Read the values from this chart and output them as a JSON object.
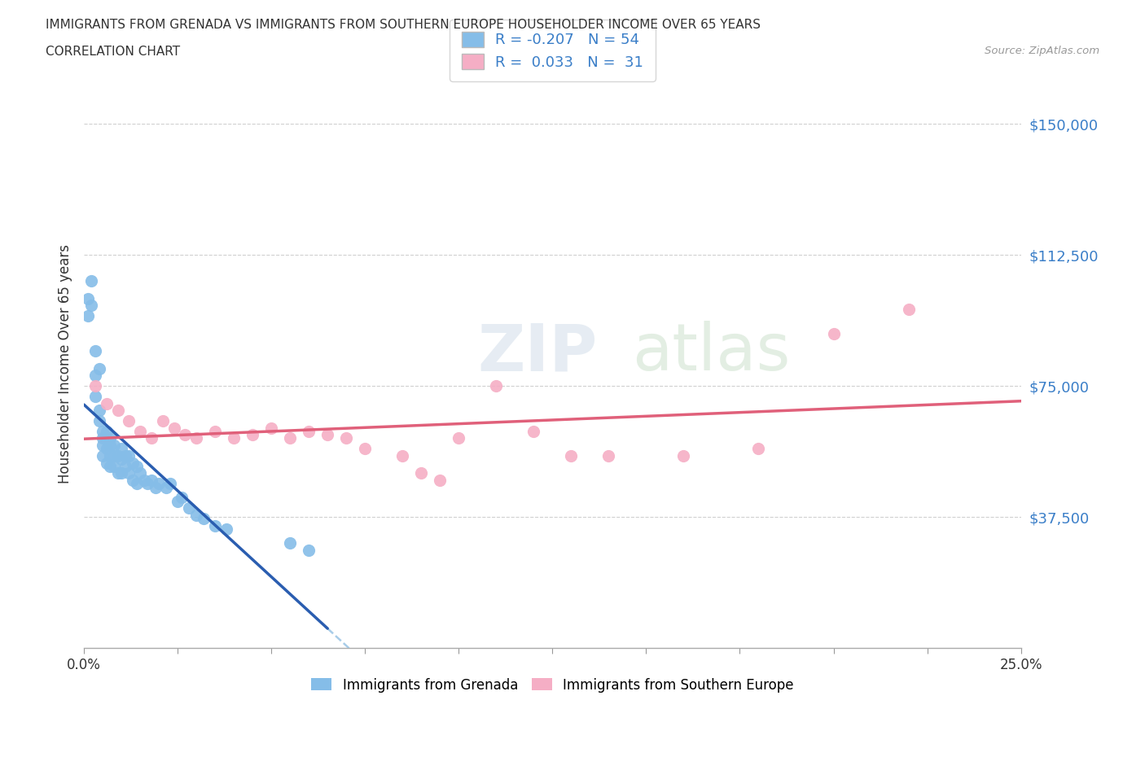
{
  "title_line1": "IMMIGRANTS FROM GRENADA VS IMMIGRANTS FROM SOUTHERN EUROPE HOUSEHOLDER INCOME OVER 65 YEARS",
  "title_line2": "CORRELATION CHART",
  "source_text": "Source: ZipAtlas.com",
  "ylabel": "Householder Income Over 65 years",
  "xlim": [
    0.0,
    0.25
  ],
  "ylim": [
    0,
    162500
  ],
  "ytick_labels": [
    "$37,500",
    "$75,000",
    "$112,500",
    "$150,000"
  ],
  "ytick_values": [
    37500,
    75000,
    112500,
    150000
  ],
  "grenada_color": "#85bde8",
  "s_europe_color": "#f5aec5",
  "grenada_line_color": "#2a5db0",
  "s_europe_line_color": "#e0607a",
  "dashed_line_color": "#a8cce8",
  "R_grenada": -0.207,
  "N_grenada": 54,
  "R_s_europe": 0.033,
  "N_s_europe": 31,
  "legend_label_1": "Immigrants from Grenada",
  "legend_label_2": "Immigrants from Southern Europe",
  "watermark_zip": "ZIP",
  "watermark_atlas": "atlas",
  "grenada_x": [
    0.001,
    0.001,
    0.002,
    0.002,
    0.003,
    0.003,
    0.003,
    0.004,
    0.004,
    0.004,
    0.005,
    0.005,
    0.005,
    0.005,
    0.006,
    0.006,
    0.006,
    0.007,
    0.007,
    0.007,
    0.007,
    0.008,
    0.008,
    0.008,
    0.009,
    0.009,
    0.01,
    0.01,
    0.01,
    0.011,
    0.011,
    0.012,
    0.012,
    0.013,
    0.013,
    0.014,
    0.014,
    0.015,
    0.016,
    0.017,
    0.018,
    0.019,
    0.02,
    0.022,
    0.023,
    0.025,
    0.026,
    0.028,
    0.03,
    0.032,
    0.035,
    0.038,
    0.055,
    0.06
  ],
  "grenada_y": [
    100000,
    95000,
    105000,
    98000,
    85000,
    78000,
    72000,
    80000,
    68000,
    65000,
    62000,
    60000,
    58000,
    55000,
    62000,
    57000,
    53000,
    60000,
    58000,
    55000,
    52000,
    58000,
    55000,
    52000,
    55000,
    50000,
    57000,
    54000,
    50000,
    55000,
    52000,
    55000,
    50000,
    53000,
    48000,
    52000,
    47000,
    50000,
    48000,
    47000,
    48000,
    46000,
    47000,
    46000,
    47000,
    42000,
    43000,
    40000,
    38000,
    37000,
    35000,
    34000,
    30000,
    28000
  ],
  "s_europe_x": [
    0.003,
    0.006,
    0.009,
    0.012,
    0.015,
    0.018,
    0.021,
    0.024,
    0.027,
    0.03,
    0.035,
    0.04,
    0.045,
    0.05,
    0.055,
    0.06,
    0.065,
    0.07,
    0.075,
    0.085,
    0.09,
    0.095,
    0.1,
    0.11,
    0.12,
    0.13,
    0.14,
    0.16,
    0.18,
    0.2,
    0.22
  ],
  "s_europe_y": [
    75000,
    70000,
    68000,
    65000,
    62000,
    60000,
    65000,
    63000,
    61000,
    60000,
    62000,
    60000,
    61000,
    63000,
    60000,
    62000,
    61000,
    60000,
    57000,
    55000,
    50000,
    48000,
    60000,
    75000,
    62000,
    55000,
    55000,
    55000,
    57000,
    90000,
    97000
  ]
}
